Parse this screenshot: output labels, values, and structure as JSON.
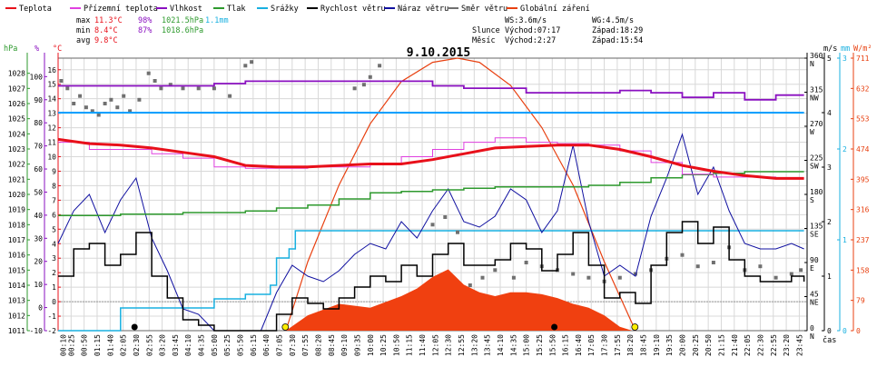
{
  "legend": [
    {
      "label": "Teplota",
      "color": "#e8101a"
    },
    {
      "label": "Přízemní teplota",
      "color": "#e040e0"
    },
    {
      "label": "Vlhkost",
      "color": "#8a10c0"
    },
    {
      "label": "Tlak",
      "color": "#2e9a2e"
    },
    {
      "label": "Srážky",
      "color": "#18b0e0"
    },
    {
      "label": "Rychlost větru",
      "color": "#000000"
    },
    {
      "label": "Náraz větru",
      "color": "#1010a0"
    },
    {
      "label": "Směr větru",
      "color": "#707070"
    },
    {
      "label": "Globální záření",
      "color": "#e84010"
    }
  ],
  "stats": {
    "max_label": "max",
    "min_label": "min",
    "avg_label": "avg",
    "max": {
      "temp": "11.3°C",
      "hum": "98%",
      "press": "1021.5hPa",
      "rain": "1.1mm"
    },
    "min": {
      "temp": "8.4°C",
      "hum": "87%",
      "press": "1018.6hPa"
    },
    "avg": {
      "temp": "9.8°C"
    }
  },
  "info": {
    "ws": "WS:3.6m/s",
    "wg": "WG:4.5m/s",
    "sun_label": "Slunce",
    "sunrise": "Východ:07:17",
    "sunset": "Západ:18:29",
    "moon_label": "Měsíc",
    "moonrise": "Východ:2:27",
    "moonset": "Západ:15:54"
  },
  "colors": {
    "wind_max": "#00a0ff",
    "sun": "#ffee00",
    "moon": "#000000",
    "grid": "#d8d8d8",
    "axis": "#666666"
  },
  "chart_data": {
    "type": "line",
    "title": "9.10.2015",
    "xlabel": "čas",
    "x_ticks": [
      "00:10",
      "00:25",
      "00:50",
      "01:15",
      "01:40",
      "02:05",
      "02:30",
      "02:55",
      "03:20",
      "03:45",
      "04:10",
      "04:35",
      "05:00",
      "05:25",
      "05:50",
      "06:15",
      "06:40",
      "07:05",
      "07:30",
      "07:55",
      "08:20",
      "08:45",
      "09:10",
      "09:35",
      "10:00",
      "10:25",
      "10:50",
      "11:15",
      "11:40",
      "12:05",
      "12:30",
      "12:55",
      "13:20",
      "13:45",
      "14:10",
      "14:35",
      "15:00",
      "15:25",
      "15:50",
      "16:15",
      "16:40",
      "17:05",
      "17:30",
      "17:55",
      "18:20",
      "18:45",
      "19:10",
      "19:35",
      "20:00",
      "20:25",
      "20:50",
      "21:15",
      "21:40",
      "22:05",
      "22:30",
      "22:55",
      "23:20",
      "23:45"
    ],
    "axes": {
      "pressure": {
        "unit": "hPa",
        "ticks": [
          "1011",
          "1012",
          "1013",
          "1014",
          "1015",
          "1016",
          "1017",
          "1018",
          "1019",
          "1020",
          "1021",
          "1022",
          "1023",
          "1024",
          "1025",
          "1026",
          "1027",
          "1028"
        ],
        "range": [
          1011,
          1029
        ]
      },
      "humidity": {
        "unit": "%",
        "ticks": [
          "-10",
          "0",
          "10",
          "20",
          "30",
          "40",
          "50",
          "60",
          "70",
          "80",
          "90",
          "100"
        ],
        "range": [
          -10,
          108
        ]
      },
      "temperature": {
        "unit": "°C",
        "ticks": [
          "-2",
          "-1",
          "0",
          "1",
          "2",
          "3",
          "4",
          "5",
          "6",
          "7",
          "8",
          "9",
          "10",
          "11",
          "12",
          "13",
          "14",
          "15",
          "16"
        ],
        "range": [
          -2,
          16.8
        ]
      },
      "direction": {
        "unit": "°",
        "ticks": [
          "0",
          "45",
          "90",
          "135",
          "180",
          "225",
          "270",
          "315",
          "360"
        ],
        "labels": [
          "N",
          "NE",
          "E",
          "SE",
          "S",
          "SW",
          "W",
          "NW",
          "N"
        ],
        "range": [
          0,
          360
        ]
      },
      "wind": {
        "unit": "m/s",
        "ticks": [
          "0",
          "1",
          "2",
          "3",
          "4",
          "5"
        ],
        "range": [
          0,
          5
        ]
      },
      "rain": {
        "unit": "mm",
        "ticks": [
          "0",
          "1",
          "2",
          "3"
        ],
        "range": [
          0,
          3
        ]
      },
      "radiation": {
        "unit": "W/m²",
        "ticks": [
          "0",
          "79",
          "158",
          "237",
          "316",
          "395",
          "474",
          "553",
          "632",
          "711"
        ],
        "range": [
          0,
          711
        ]
      }
    },
    "series": {
      "temperature": {
        "x": [
          0,
          1,
          2,
          3,
          4,
          5,
          6,
          7,
          8,
          9,
          10,
          11,
          12,
          13,
          14,
          15,
          16,
          17,
          18,
          19,
          20,
          21,
          22,
          23,
          23.9
        ],
        "y": [
          11.2,
          10.9,
          10.8,
          10.6,
          10.3,
          10.0,
          9.4,
          9.3,
          9.3,
          9.4,
          9.5,
          9.5,
          9.8,
          10.2,
          10.6,
          10.7,
          10.8,
          10.8,
          10.5,
          10.0,
          9.4,
          9.0,
          8.7,
          8.5,
          8.5
        ]
      },
      "ground_temperature": {
        "x": [
          0,
          1,
          2,
          3,
          4,
          5,
          6,
          7,
          8,
          9,
          10,
          11,
          12,
          13,
          14,
          15,
          16,
          17,
          18,
          19,
          20,
          21,
          22,
          23,
          23.9
        ],
        "y": [
          11.0,
          10.5,
          10.5,
          10.2,
          9.9,
          9.3,
          9.2,
          9.2,
          9.3,
          9.3,
          9.5,
          10.0,
          10.5,
          11.0,
          11.3,
          11.0,
          10.9,
          10.8,
          10.4,
          9.6,
          8.8,
          8.6,
          8.6,
          8.5,
          8.5
        ]
      },
      "humidity": {
        "x": [
          0,
          2,
          4,
          5,
          6,
          8,
          10,
          11,
          12,
          13,
          14,
          15,
          16,
          17,
          18,
          19,
          20,
          21,
          22,
          23,
          23.9
        ],
        "y": [
          96,
          96,
          96,
          97,
          98,
          98,
          98,
          98,
          96,
          95,
          95,
          93,
          93,
          93,
          94,
          93,
          91,
          93,
          90,
          92,
          92
        ]
      },
      "pressure": {
        "x": [
          0,
          2,
          4,
          5,
          6,
          7,
          8,
          9,
          10,
          11,
          12,
          13,
          14,
          15,
          16,
          17,
          18,
          19,
          20,
          21,
          22,
          23,
          23.9
        ],
        "y": [
          1018.6,
          1018.7,
          1018.8,
          1018.8,
          1018.9,
          1019.1,
          1019.3,
          1019.7,
          1020.1,
          1020.2,
          1020.3,
          1020.4,
          1020.5,
          1020.5,
          1020.5,
          1020.6,
          1020.8,
          1021.1,
          1021.3,
          1021.4,
          1021.5,
          1021.5,
          1021.5
        ]
      },
      "rain": {
        "x": [
          0,
          2,
          3,
          5,
          6,
          6.8,
          7.0,
          7.4,
          7.6,
          8,
          10,
          12,
          14,
          15,
          16,
          17,
          18,
          20,
          22,
          23.9
        ],
        "y": [
          0,
          0.25,
          0.25,
          0.35,
          0.4,
          0.5,
          0.8,
          0.9,
          1.1,
          1.1,
          1.1,
          1.1,
          1.1,
          1.1,
          1.1,
          1.1,
          1.1,
          1.1,
          1.1,
          1.1
        ]
      },
      "wind_speed": {
        "x": [
          0,
          0.5,
          1,
          1.5,
          2,
          2.5,
          3,
          3.5,
          4,
          4.5,
          5,
          5.5,
          6,
          6.5,
          7,
          7.5,
          8,
          8.5,
          9,
          9.5,
          10,
          10.5,
          11,
          11.5,
          12,
          12.5,
          13,
          13.5,
          14,
          14.5,
          15,
          15.5,
          16,
          16.5,
          17,
          17.5,
          18,
          18.5,
          19,
          19.5,
          20,
          20.5,
          21,
          21.5,
          22,
          22.5,
          23,
          23.5,
          23.9
        ],
        "y": [
          1.0,
          1.5,
          1.6,
          1.2,
          1.4,
          1.8,
          1.0,
          0.6,
          0.2,
          0.1,
          0,
          0,
          0,
          0,
          0.3,
          0.6,
          0.5,
          0.4,
          0.6,
          0.8,
          1.0,
          0.9,
          1.2,
          1.0,
          1.4,
          1.6,
          1.2,
          1.2,
          1.3,
          1.6,
          1.5,
          1.1,
          1.4,
          1.8,
          1.2,
          0.6,
          0.7,
          0.5,
          1.2,
          1.8,
          2.0,
          1.6,
          1.9,
          1.3,
          1.0,
          0.9,
          0.9,
          1.0,
          0.9
        ]
      },
      "wind_gust": {
        "x": [
          0,
          0.5,
          1,
          1.5,
          2,
          2.5,
          3,
          3.5,
          4,
          4.5,
          5,
          5.5,
          6,
          6.5,
          7,
          7.5,
          8,
          8.5,
          9,
          9.5,
          10,
          10.5,
          11,
          11.5,
          12,
          12.5,
          13,
          13.5,
          14,
          14.5,
          15,
          15.5,
          16,
          16.5,
          17,
          17.5,
          18,
          18.5,
          19,
          19.5,
          20,
          20.5,
          21,
          21.5,
          22,
          22.5,
          23,
          23.5,
          23.9
        ],
        "y": [
          1.6,
          2.2,
          2.5,
          1.8,
          2.4,
          2.8,
          1.7,
          1.1,
          0.4,
          0.3,
          0,
          0,
          0,
          0,
          0.7,
          1.2,
          1.0,
          0.9,
          1.1,
          1.4,
          1.6,
          1.5,
          2.0,
          1.7,
          2.2,
          2.6,
          2.0,
          1.9,
          2.1,
          2.6,
          2.4,
          1.8,
          2.2,
          3.4,
          2.0,
          1.0,
          1.2,
          1.0,
          2.1,
          2.8,
          3.6,
          2.5,
          3.0,
          2.2,
          1.6,
          1.5,
          1.5,
          1.6,
          1.5
        ]
      },
      "wind_max": {
        "x": [
          0,
          23.9
        ],
        "y": [
          4.0,
          4.0
        ]
      },
      "wind_direction": {
        "x": [
          0.1,
          0.3,
          0.5,
          0.7,
          0.9,
          1.1,
          1.3,
          1.5,
          1.7,
          1.9,
          2.1,
          2.3,
          2.6,
          2.9,
          3.1,
          3.3,
          3.6,
          4.0,
          4.5,
          5.0,
          5.5,
          6.0,
          6.2,
          9.5,
          9.8,
          10.0,
          10.3,
          12.0,
          12.4,
          12.8,
          13.2,
          13.6,
          14.0,
          14.6,
          15.0,
          15.5,
          16.0,
          16.5,
          17.0,
          17.5,
          18.0,
          18.5,
          19.0,
          19.5,
          20.0,
          20.5,
          21.0,
          21.5,
          22.0,
          22.5,
          23.0,
          23.5,
          23.8
        ],
        "y": [
          330,
          320,
          300,
          310,
          295,
          290,
          285,
          300,
          305,
          295,
          310,
          290,
          305,
          340,
          330,
          320,
          325,
          320,
          320,
          320,
          310,
          350,
          355,
          320,
          325,
          335,
          350,
          140,
          150,
          130,
          60,
          70,
          80,
          70,
          90,
          85,
          80,
          75,
          70,
          65,
          70,
          75,
          80,
          95,
          100,
          85,
          90,
          110,
          80,
          85,
          70,
          75,
          80
        ]
      },
      "radiation": {
        "x": [
          7.3,
          8,
          9,
          10,
          11,
          11.5,
          12,
          12.5,
          13,
          13.5,
          14,
          14.5,
          15,
          15.5,
          16,
          16.5,
          17,
          17.5,
          18,
          18.4
        ],
        "y": [
          0,
          40,
          70,
          60,
          90,
          110,
          140,
          160,
          120,
          100,
          90,
          100,
          100,
          95,
          85,
          70,
          60,
          40,
          10,
          0
        ]
      },
      "theoretical_radiation": {
        "x": [
          7.3,
          8,
          9,
          10,
          11,
          12,
          12.8,
          13.5,
          14.5,
          15.5,
          16.5,
          17.5,
          18.5
        ],
        "y": [
          0,
          180,
          380,
          540,
          650,
          700,
          711,
          700,
          640,
          530,
          380,
          180,
          0
        ]
      }
    },
    "sun_marks": {
      "x": [
        7.28,
        18.48
      ]
    },
    "moon_marks": {
      "x": [
        2.45,
        15.9
      ]
    }
  }
}
